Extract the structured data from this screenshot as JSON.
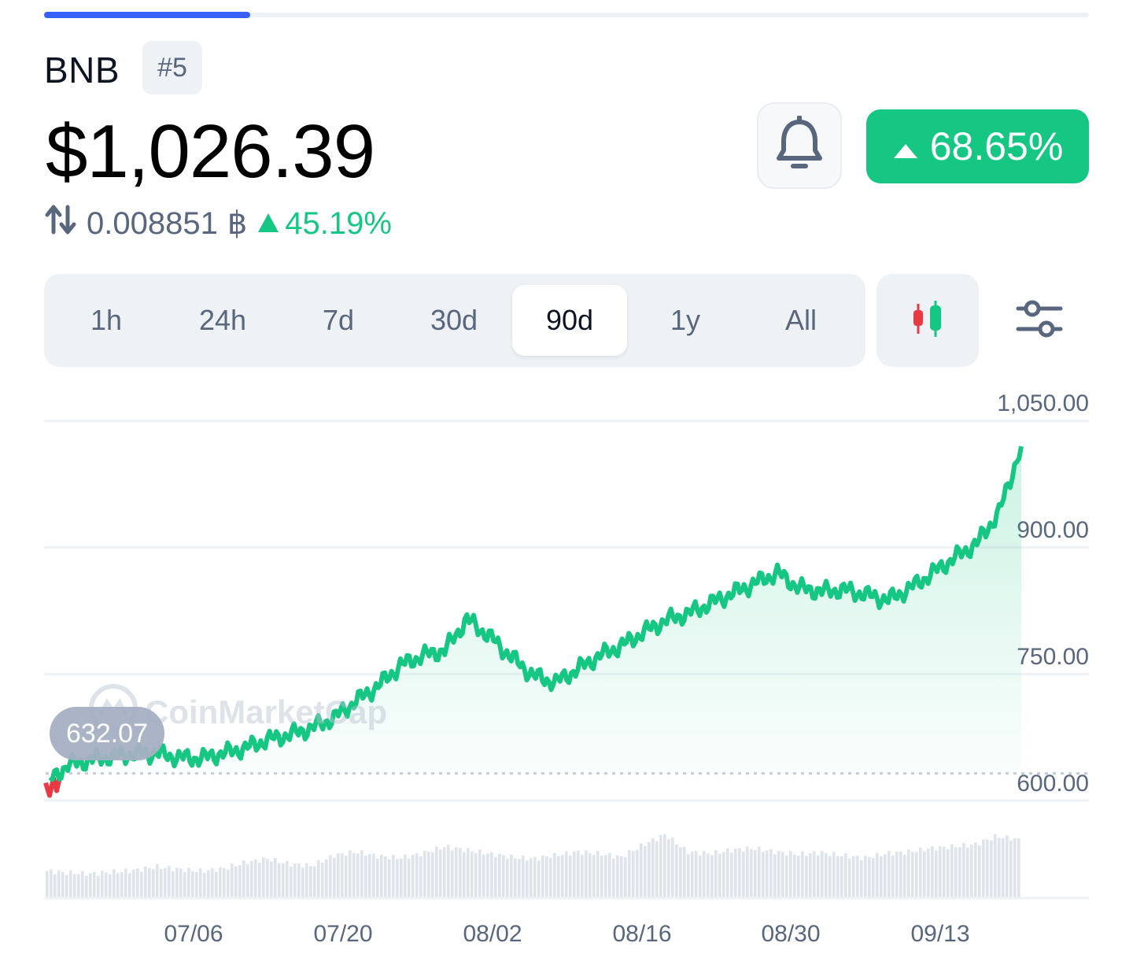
{
  "coin": {
    "name": "BNB",
    "rank": "#5",
    "price": "$1,026.39",
    "btc_price": "0.008851",
    "btc_symbol": "฿",
    "btc_change": "45.19%",
    "change_pct": "68.65%"
  },
  "colors": {
    "up": "#16c784",
    "down": "#ea3943",
    "accent": "#3861fb",
    "muted": "#58667e"
  },
  "icons": {
    "swap": "swap-arrows-icon",
    "bell": "bell-icon",
    "candles": "candlestick-icon",
    "settings": "sliders-icon"
  },
  "ranges": [
    {
      "label": "1h"
    },
    {
      "label": "24h"
    },
    {
      "label": "7d"
    },
    {
      "label": "30d"
    },
    {
      "label": "90d",
      "active": true
    },
    {
      "label": "1y"
    },
    {
      "label": "All"
    }
  ],
  "chart": {
    "open_label": "632.07",
    "watermark": "CoinMarketCap"
  },
  "chart_data": {
    "type": "area",
    "y_ticks": [
      "1,050.00",
      "900.00",
      "750.00",
      "600.00"
    ],
    "x_ticks": [
      "07/06",
      "07/20",
      "08/02",
      "08/16",
      "08/30",
      "09/13"
    ],
    "ylim": [
      570,
      1060
    ],
    "baseline": 632.07,
    "series": [
      {
        "x": [
          "06/25",
          "06/27",
          "06/29",
          "07/01",
          "07/03",
          "07/05",
          "07/07",
          "07/09",
          "07/11",
          "07/13",
          "07/15",
          "07/17",
          "07/19",
          "07/21",
          "07/23",
          "07/25",
          "07/27",
          "07/29",
          "07/31",
          "08/02",
          "08/04",
          "08/06",
          "08/08",
          "08/10",
          "08/12",
          "08/14",
          "08/16",
          "08/18",
          "08/20",
          "08/22",
          "08/24",
          "08/26",
          "08/28",
          "08/30",
          "09/01",
          "09/03",
          "09/05",
          "09/07",
          "09/09",
          "09/11",
          "09/13",
          "09/15",
          "09/17",
          "09/19",
          "09/21"
        ],
        "values": [
          620,
          642,
          648,
          652,
          655,
          656,
          651,
          650,
          656,
          662,
          672,
          678,
          686,
          698,
          718,
          736,
          760,
          772,
          778,
          815,
          795,
          770,
          748,
          740,
          756,
          772,
          784,
          800,
          814,
          822,
          834,
          846,
          858,
          870,
          852,
          848,
          850,
          844,
          838,
          852,
          870,
          888,
          905,
          942,
          1020
        ]
      }
    ],
    "volume": [
      30,
      28,
      27,
      29,
      31,
      35,
      32,
      30,
      33,
      40,
      44,
      38,
      36,
      48,
      52,
      47,
      45,
      50,
      58,
      54,
      50,
      46,
      44,
      48,
      52,
      50,
      46,
      60,
      72,
      52,
      50,
      54,
      56,
      52,
      49,
      51,
      48,
      45,
      50,
      52,
      56,
      58,
      60,
      70,
      66
    ]
  }
}
